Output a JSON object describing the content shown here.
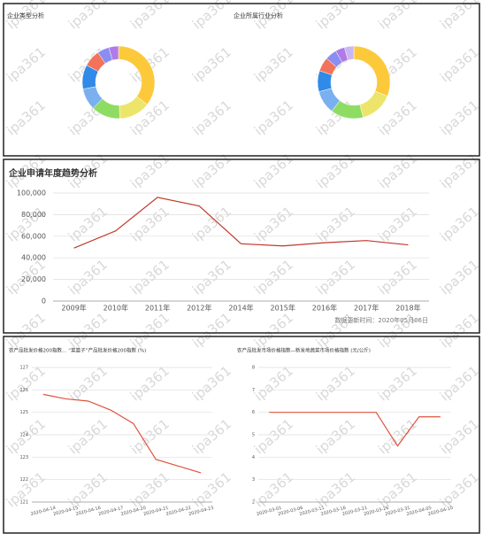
{
  "watermark": "ipa361",
  "chart_data": [
    {
      "type": "pie",
      "title": "企业类型分析",
      "categories": [
        null,
        null,
        null,
        null,
        null,
        null,
        null,
        null
      ],
      "values": [
        33,
        13,
        12,
        9,
        10,
        7,
        5,
        4
      ],
      "colors": [
        "#fcc93a",
        "#ede56a",
        "#8fdc62",
        "#7ab0f0",
        "#2f8ae8",
        "#f2735a",
        "#8a8ef2",
        "#b07ae8"
      ]
    },
    {
      "type": "pie",
      "title": "企业所属行业分析",
      "categories": [
        null,
        null,
        null,
        null,
        null,
        null,
        null,
        null,
        null
      ],
      "values": [
        30,
        14,
        14,
        10,
        9,
        6,
        5,
        4,
        4
      ],
      "colors": [
        "#fcc93a",
        "#ede56a",
        "#8fdc62",
        "#7ab0f0",
        "#2f8ae8",
        "#f2735a",
        "#8a8ef2",
        "#b07ae8",
        "#c9b6f5"
      ]
    },
    {
      "type": "line",
      "title": "企业申请年度趋势分析",
      "note": "数据更新时间：2020年05月06日",
      "categories": [
        "2009年",
        "2010年",
        "2011年",
        "2012年",
        "2014年",
        "2015年",
        "2016年",
        "2017年",
        "2018年"
      ],
      "values": [
        49000,
        65000,
        96000,
        88000,
        53000,
        51000,
        54000,
        56000,
        52000
      ],
      "color": "#c0392b",
      "ylim": [
        0,
        100000
      ],
      "yticks": [
        0,
        {
          "value": 20000,
          "label": "20,000"
        },
        {
          "value": 40000,
          "label": "40,000"
        },
        {
          "value": 60000,
          "label": "60,000"
        },
        {
          "value": 80000,
          "label": "80,000"
        },
        {
          "value": 100000,
          "label": "100,000"
        }
      ],
      "grid": true
    },
    {
      "type": "line",
      "title": "农产品批发价格200指数… “菜篮子”产品批发价格200指数 (%)",
      "categories": [
        "2020-04-14",
        "2020-04-15",
        "2020-04-16",
        "2020-04-17",
        "2020-04-20",
        "2020-04-21",
        "2020-04-22",
        "2020-04-23"
      ],
      "values": [
        125.8,
        125.6,
        125.5,
        125.1,
        124.5,
        122.9,
        122.6,
        122.3
      ],
      "color": "#e0533d",
      "ylim": [
        121,
        127
      ],
      "yticks": [
        121,
        122,
        123,
        124,
        125,
        126,
        127
      ],
      "grid": true
    },
    {
      "type": "line",
      "title": "农产品批发市场价格指数—新发地蔬菜市场价格指数 (元/公斤)",
      "categories": [
        "2020-03-01",
        "2020-03-06",
        "2020-03-11",
        "2020-03-16",
        "2020-03-21",
        "2020-03-26",
        "2020-03-31",
        "2020-04-05",
        "2020-04-10"
      ],
      "values": [
        6,
        6,
        6,
        6,
        6,
        6,
        4.5,
        5.8,
        5.8
      ],
      "color": "#e0533d",
      "ylim": [
        2,
        8
      ],
      "yticks": [
        2,
        3,
        4,
        5,
        6,
        7,
        8
      ],
      "grid": true
    }
  ]
}
